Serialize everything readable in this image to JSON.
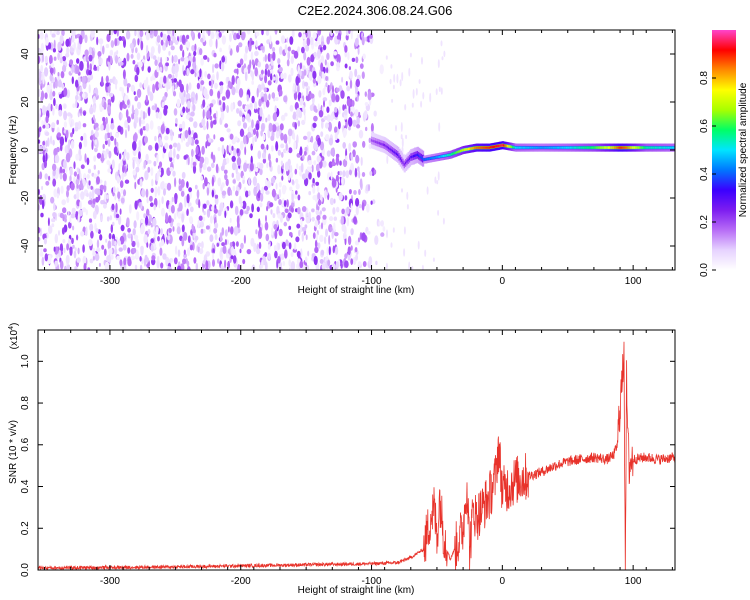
{
  "title": "C2E2.2024.306.08.24.G06",
  "colors": {
    "snr_line": "#e8322a",
    "cbar_stops": [
      "#ffffff",
      "#e6d2ff",
      "#b76cf6",
      "#7d1df0",
      "#3a00ff",
      "#0077ff",
      "#00e5ff",
      "#00ff66",
      "#a8ff00",
      "#ffff00",
      "#ff8a00",
      "#ff0000",
      "#ff44cc"
    ]
  },
  "chart_data": [
    {
      "type": "heatmap",
      "title": "C2E2.2024.306.08.24.G06",
      "xlabel": "Height of straight line (km)",
      "ylabel": "Frequency (Hz)",
      "xlim": [
        -355,
        132
      ],
      "ylim": [
        -50,
        50
      ],
      "xticks": [
        -300,
        -200,
        -100,
        0,
        100
      ],
      "yticks": [
        -40,
        -20,
        0,
        20,
        40
      ],
      "xtick_labels": [
        "-300",
        "-200",
        "-100",
        "0",
        "100"
      ],
      "ytick_labels": [
        "-40",
        "-20",
        "0",
        "20",
        "40"
      ],
      "colorbar": {
        "label": "Normalized spectral amplitude",
        "range": [
          0,
          1
        ],
        "ticks": [
          0.0,
          0.2,
          0.4,
          0.6,
          0.8
        ],
        "tick_labels": [
          "0.0",
          "0.2",
          "0.4",
          "0.6",
          "0.8"
        ]
      },
      "noise_region_x": [
        -355,
        -90
      ],
      "signal_track": {
        "x": [
          -100,
          -90,
          -80,
          -75,
          -70,
          -65,
          -60,
          -50,
          -40,
          -30,
          -20,
          -10,
          0,
          10,
          30,
          50,
          70,
          85,
          90,
          95,
          110,
          132
        ],
        "freq": [
          4,
          2,
          -2,
          -6,
          -3,
          -2,
          -4,
          -3,
          -2,
          0,
          1,
          1,
          2,
          1,
          1,
          1,
          1,
          1,
          1,
          1,
          1,
          1
        ],
        "amplitude": [
          0.2,
          0.25,
          0.3,
          0.25,
          0.3,
          0.35,
          0.4,
          0.45,
          0.55,
          0.7,
          0.85,
          0.9,
          0.95,
          0.5,
          0.45,
          0.5,
          0.6,
          0.8,
          0.9,
          0.85,
          0.55,
          0.5
        ]
      }
    },
    {
      "type": "line",
      "xlabel": "Height of straight line (km)",
      "ylabel": "SNR (10 * v/v)",
      "y_multiplier_label": "(x10",
      "y_multiplier_exp": "4",
      "xlim": [
        -355,
        132
      ],
      "ylim": [
        0,
        1.15
      ],
      "xticks": [
        -300,
        -200,
        -100,
        0,
        100
      ],
      "yticks": [
        0.0,
        0.2,
        0.4,
        0.6,
        0.8,
        1.0
      ],
      "xtick_labels": [
        "-300",
        "-200",
        "-100",
        "0",
        "100"
      ],
      "ytick_labels": [
        "0.0",
        "0.2",
        "0.4",
        "0.6",
        "0.8",
        "1.0"
      ],
      "series": [
        {
          "x": [
            -355,
            -300,
            -250,
            -200,
            -150,
            -100,
            -80,
            -70,
            -60,
            -55,
            -52,
            -50,
            -48,
            -45,
            -40,
            -35,
            -30,
            -27,
            -25,
            -22,
            -20,
            -15,
            -10,
            -5,
            -3,
            0,
            5,
            10,
            20,
            30,
            40,
            50,
            60,
            70,
            80,
            85,
            88,
            90,
            92,
            93,
            94,
            95,
            96,
            97,
            98,
            100,
            110,
            120,
            132
          ],
          "y": [
            0.01,
            0.012,
            0.015,
            0.02,
            0.025,
            0.03,
            0.035,
            0.06,
            0.1,
            0.25,
            0.3,
            0.15,
            0.35,
            0.18,
            0.05,
            0.12,
            0.2,
            0.42,
            0.1,
            0.3,
            0.25,
            0.3,
            0.35,
            0.45,
            0.6,
            0.38,
            0.4,
            0.43,
            0.45,
            0.47,
            0.5,
            0.52,
            0.53,
            0.54,
            0.53,
            0.55,
            0.6,
            0.8,
            0.92,
            1.12,
            0.0,
            0.9,
            0.6,
            0.5,
            0.52,
            0.53,
            0.54,
            0.53,
            0.54
          ]
        }
      ]
    }
  ]
}
